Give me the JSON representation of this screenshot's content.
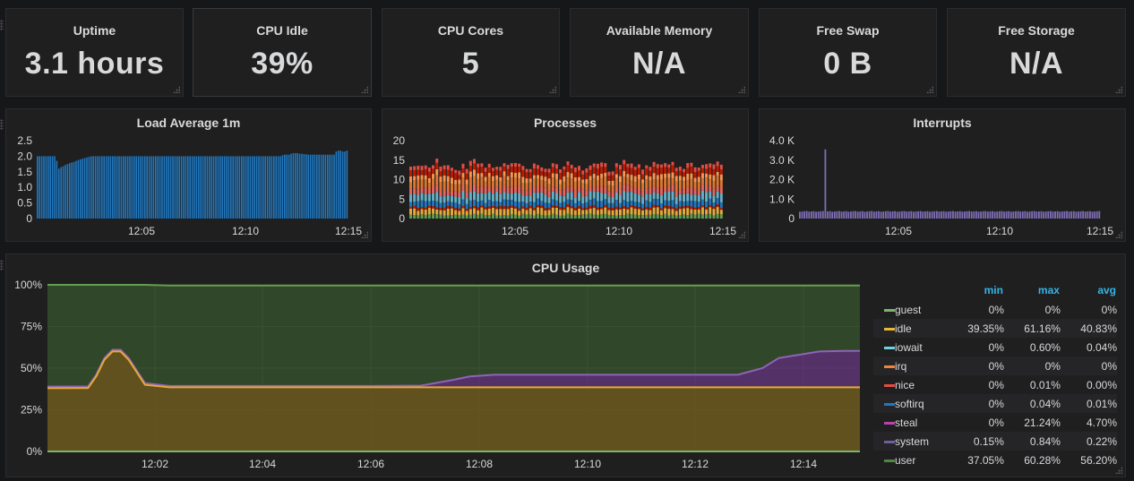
{
  "stats": [
    {
      "title": "Uptime",
      "value": "3.1 hours"
    },
    {
      "title": "CPU Idle",
      "value": "39%"
    },
    {
      "title": "CPU Cores",
      "value": "5"
    },
    {
      "title": "Available Memory",
      "value": "N/A"
    },
    {
      "title": "Free Swap",
      "value": "0 B"
    },
    {
      "title": "Free Storage",
      "value": "N/A"
    }
  ],
  "colors": {
    "background": "#161719",
    "panel": "#1f1f20",
    "text": "#d8d9da",
    "legend_header": "#33b5e5",
    "load": "#1f78c1",
    "interrupts": "#806eb7"
  },
  "load_chart": {
    "title": "Load Average 1m",
    "chart_data": {
      "type": "bar",
      "title": "Load Average 1m",
      "ylabels": [
        "2.5",
        "2.0",
        "1.5",
        "1.0",
        "0.5",
        "0"
      ],
      "xlabels": [
        "12:05",
        "12:10",
        "12:15"
      ],
      "ylim": [
        0,
        2.5
      ],
      "values": [
        2.0,
        2.0,
        2.0,
        2.0,
        2.0,
        2.0,
        2.0,
        2.0,
        2.0,
        1.85,
        1.6,
        1.65,
        1.68,
        1.72,
        1.75,
        1.78,
        1.8,
        1.82,
        1.85,
        1.88,
        1.9,
        1.92,
        1.94,
        1.96,
        1.98,
        2.0,
        2.0,
        2.0,
        2.0,
        2.0,
        2.0,
        2.0,
        2.0,
        2.0,
        2.0,
        2.0,
        2.0,
        2.0,
        2.0,
        2.0,
        2.0,
        2.0,
        2.0,
        2.0,
        2.0,
        2.0,
        2.0,
        2.0,
        2.0,
        2.0,
        2.0,
        2.0,
        2.0,
        2.0,
        2.0,
        2.0,
        2.0,
        2.0,
        2.0,
        2.0,
        2.0,
        2.0,
        2.0,
        2.0,
        2.0,
        2.0,
        2.0,
        2.0,
        2.0,
        2.0,
        2.0,
        2.0,
        2.0,
        2.0,
        2.0,
        2.0,
        2.0,
        2.0,
        2.0,
        2.0,
        2.0,
        2.0,
        2.0,
        2.0,
        2.0,
        2.0,
        2.0,
        2.0,
        2.0,
        2.0,
        2.0,
        2.0,
        2.0,
        2.0,
        2.0,
        2.0,
        2.0,
        2.0,
        2.0,
        2.0,
        2.0,
        2.0,
        2.0,
        2.0,
        2.0,
        2.0,
        2.0,
        2.0,
        2.0,
        2.0,
        2.0,
        2.0,
        2.0,
        2.0,
        2.03,
        2.05,
        2.05,
        2.05,
        2.08,
        2.1,
        2.1,
        2.1,
        2.08,
        2.08,
        2.07,
        2.06,
        2.05,
        2.05,
        2.05,
        2.05,
        2.05,
        2.05,
        2.05,
        2.05,
        2.05,
        2.05,
        2.05,
        2.05,
        2.05,
        2.15,
        2.18,
        2.18,
        2.15,
        2.15,
        2.18
      ]
    }
  },
  "processes_chart": {
    "title": "Processes",
    "chart_data": {
      "type": "bar",
      "title": "Processes",
      "ylabels": [
        "20",
        "15",
        "10",
        "5",
        "0"
      ],
      "xlabels": [
        "12:05",
        "12:10",
        "12:15"
      ],
      "ylim": [
        0,
        20
      ],
      "stack_colors": [
        "#629e51",
        "#e5a938",
        "#bf1b00",
        "#1f78c1",
        "#64b0c8",
        "#ea6460",
        "#e0752d",
        "#f9934e",
        "#bf1b00",
        "#e24d42"
      ],
      "bar_count": 84
    }
  },
  "interrupts_chart": {
    "title": "Interrupts",
    "chart_data": {
      "type": "bar",
      "title": "Interrupts",
      "ylabels": [
        "4.0 K",
        "3.0 K",
        "2.0 K",
        "1.0 K",
        "0"
      ],
      "xlabels": [
        "12:05",
        "12:10",
        "12:15"
      ],
      "ylim": [
        0,
        4000
      ],
      "base": 350,
      "spike_index": 11,
      "spike_value": 3550,
      "bar_count": 130
    }
  },
  "cpu_chart": {
    "title": "CPU Usage",
    "chart_data": {
      "type": "area",
      "title": "CPU Usage",
      "ylabels": [
        "100%",
        "75%",
        "50%",
        "25%",
        "0%"
      ],
      "xlabels": [
        "12:02",
        "12:04",
        "12:06",
        "12:08",
        "12:10",
        "12:12",
        "12:14"
      ],
      "ylim": [
        0,
        100
      ],
      "x": [
        0,
        4,
        5,
        6,
        7,
        8,
        9,
        10,
        12,
        15,
        20,
        30,
        40,
        46,
        50,
        52,
        55,
        60,
        70,
        80,
        85,
        88,
        90,
        95,
        98,
        100
      ],
      "user": [
        38,
        38,
        38,
        45,
        55,
        60,
        60,
        55,
        40,
        38.5,
        38.5,
        38.5,
        38.5,
        38.5,
        38.5,
        38.5,
        38.5,
        38.5,
        38.5,
        38.5,
        38.5,
        38.5,
        38.5,
        38.5,
        38.5,
        38.5
      ],
      "system": [
        39,
        39,
        39,
        46,
        56,
        61,
        61,
        56,
        41,
        39.3,
        39.3,
        39.3,
        39.3,
        39.5,
        43,
        45,
        46,
        46,
        46,
        46,
        46,
        50,
        56,
        60,
        60.3,
        60.3
      ],
      "idle": [
        100,
        100,
        100,
        100,
        100,
        100,
        100,
        100,
        100,
        99.6,
        99.6,
        99.6,
        99.6,
        99.6,
        99.6,
        99.6,
        99.6,
        99.6,
        99.6,
        99.6,
        99.6,
        99.6,
        99.6,
        99.6,
        99.6,
        99.6
      ]
    }
  },
  "legend": {
    "headers": [
      "min",
      "max",
      "avg"
    ],
    "rows": [
      {
        "name": "guest",
        "color": "#7eb26d",
        "min": "0%",
        "max": "0%",
        "avg": "0%"
      },
      {
        "name": "idle",
        "color": "#eab839",
        "min": "39.35%",
        "max": "61.16%",
        "avg": "40.83%"
      },
      {
        "name": "iowait",
        "color": "#6ed0e0",
        "min": "0%",
        "max": "0.60%",
        "avg": "0.04%"
      },
      {
        "name": "irq",
        "color": "#ef843c",
        "min": "0%",
        "max": "0%",
        "avg": "0%"
      },
      {
        "name": "nice",
        "color": "#e24d42",
        "min": "0%",
        "max": "0.01%",
        "avg": "0.00%"
      },
      {
        "name": "softirq",
        "color": "#1f78c1",
        "min": "0%",
        "max": "0.04%",
        "avg": "0.01%"
      },
      {
        "name": "steal",
        "color": "#ba43a9",
        "min": "0%",
        "max": "21.24%",
        "avg": "4.70%"
      },
      {
        "name": "system",
        "color": "#705da0",
        "min": "0.15%",
        "max": "0.84%",
        "avg": "0.22%"
      },
      {
        "name": "user",
        "color": "#508642",
        "min": "37.05%",
        "max": "60.28%",
        "avg": "56.20%"
      }
    ]
  }
}
